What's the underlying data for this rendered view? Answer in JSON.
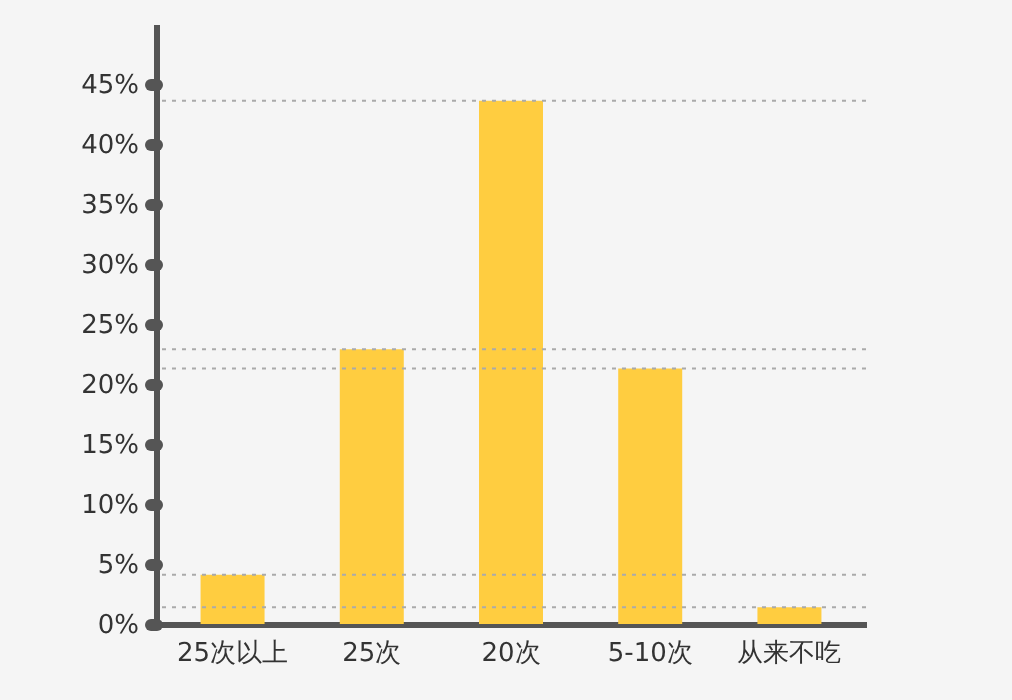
{
  "chart_data": {
    "type": "bar",
    "categories": [
      "25次以上",
      "25次",
      "20次",
      "5-10次",
      "从来不吃"
    ],
    "values": [
      4.1,
      22.9,
      43.6,
      21.3,
      1.4
    ],
    "color": "#ffcd40",
    "ylim": [
      0,
      50
    ],
    "yticks": [
      {
        "value": 0,
        "label": "0%"
      },
      {
        "value": 5,
        "label": "5%"
      },
      {
        "value": 10,
        "label": "10%"
      },
      {
        "value": 15,
        "label": "15%"
      },
      {
        "value": 20,
        "label": "20%"
      },
      {
        "value": 25,
        "label": "25%"
      },
      {
        "value": 30,
        "label": "30%"
      },
      {
        "value": 35,
        "label": "35%"
      },
      {
        "value": 40,
        "label": "40%"
      },
      {
        "value": 45,
        "label": "45%"
      }
    ],
    "ref_lines": [
      {
        "axis": "y",
        "value": 43.6,
        "color": "#aaaaaa",
        "line_style": "dotted"
      },
      {
        "axis": "y",
        "value": 22.9,
        "color": "#aaaaaa",
        "line_style": "dotted"
      },
      {
        "axis": "y",
        "value": 21.3,
        "color": "#aaaaaa",
        "line_style": "dotted"
      },
      {
        "axis": "y",
        "value": 4.1,
        "color": "#aaaaaa",
        "line_style": "dotted"
      },
      {
        "axis": "y",
        "value": 1.4,
        "color": "#aaaaaa",
        "line_style": "dotted"
      }
    ],
    "grid": false
  }
}
